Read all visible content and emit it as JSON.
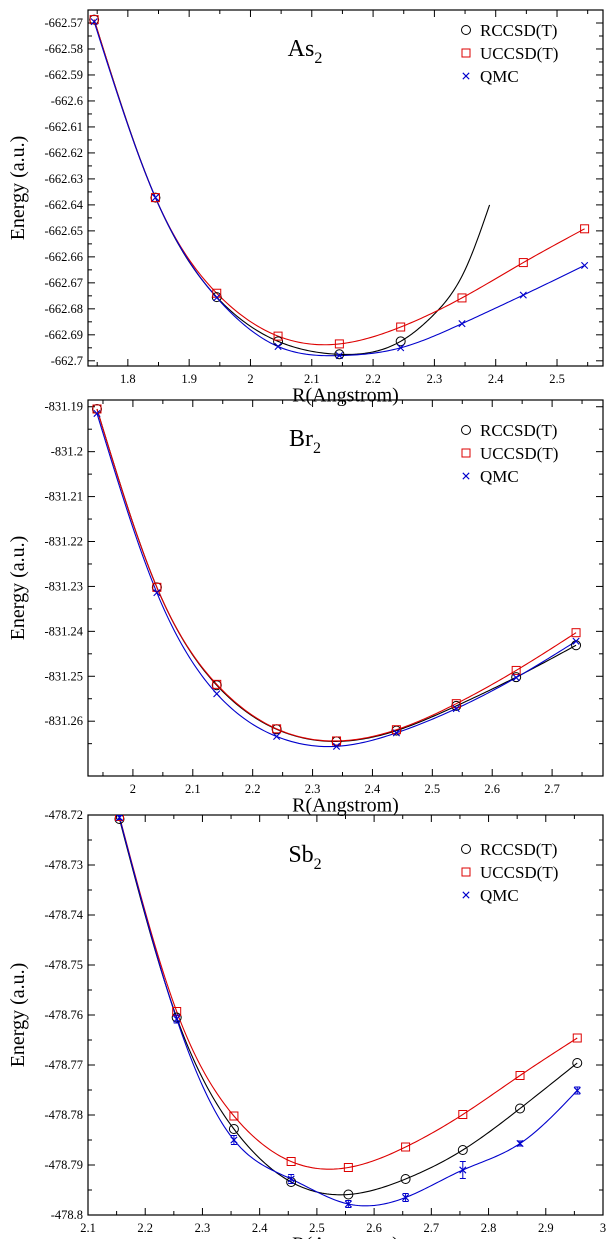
{
  "colors": {
    "rccsd": "#000000",
    "uccsd": "#dd0000",
    "qmc": "#0000cc",
    "axis": "#000000"
  },
  "chart_data": [
    {
      "type": "line",
      "title": "As",
      "title_sub": "2",
      "xlabel": "R(Angstrom)",
      "ylabel": "Energy (a.u.)",
      "xlim": [
        1.735,
        2.575
      ],
      "ylim": [
        -662.702,
        -662.565
      ],
      "xticks": [
        1.8,
        1.9,
        2,
        2.1,
        2.2,
        2.3,
        2.4,
        2.5
      ],
      "xtick_labels": [
        "1.8",
        "1.9",
        "2",
        "2.1",
        "2.2",
        "2.3",
        "2.4",
        "2.5"
      ],
      "yticks": [
        -662.57,
        -662.58,
        -662.59,
        -662.6,
        -662.61,
        -662.62,
        -662.63,
        -662.64,
        -662.65,
        -662.66,
        -662.67,
        -662.68,
        -662.69,
        -662.7
      ],
      "ytick_labels": [
        "-662.57",
        "-662.58",
        "-662.59",
        "-662.6",
        "-662.61",
        "-662.62",
        "-662.63",
        "-662.64",
        "-662.65",
        "-662.66",
        "-662.67",
        "-662.68",
        "-662.69",
        "-662.7"
      ],
      "grid": false,
      "legend": "top-right",
      "series": [
        {
          "name": "RCCSD(T)",
          "marker": "circle",
          "color": "#000000",
          "x": [
            1.745,
            1.845,
            1.945,
            2.045,
            2.145,
            2.245
          ],
          "y": [
            -662.5687,
            -662.6372,
            -662.6755,
            -662.6925,
            -662.6975,
            -662.6925
          ],
          "curve_x": [
            1.745,
            1.845,
            1.945,
            2.045,
            2.145,
            2.245,
            2.3,
            2.35,
            2.39
          ],
          "curve_y": [
            -662.5687,
            -662.6372,
            -662.6755,
            -662.6925,
            -662.6975,
            -662.6925,
            -662.682,
            -662.665,
            -662.64
          ]
        },
        {
          "name": "UCCSD(T)",
          "marker": "square",
          "color": "#dd0000",
          "x": [
            1.745,
            1.845,
            1.945,
            2.045,
            2.145,
            2.245,
            2.345,
            2.445,
            2.545
          ],
          "y": [
            -662.5687,
            -662.6372,
            -662.674,
            -662.6905,
            -662.6935,
            -662.687,
            -662.6758,
            -662.6622,
            -662.6492
          ]
        },
        {
          "name": "QMC",
          "marker": "x",
          "color": "#0000cc",
          "x": [
            1.745,
            1.845,
            1.945,
            2.045,
            2.145,
            2.245,
            2.345,
            2.445,
            2.545
          ],
          "y": [
            -662.5695,
            -662.6372,
            -662.6757,
            -662.6945,
            -662.698,
            -662.695,
            -662.6857,
            -662.6747,
            -662.6633
          ]
        }
      ]
    },
    {
      "type": "line",
      "title": "Br",
      "title_sub": "2",
      "xlabel": "R(Angstrom)",
      "ylabel": "Energy (a.u.)",
      "xlim": [
        1.925,
        2.785
      ],
      "ylim": [
        -831.2722,
        -831.1885
      ],
      "xticks": [
        2,
        2.1,
        2.2,
        2.3,
        2.4,
        2.5,
        2.6,
        2.7
      ],
      "xtick_labels": [
        "2",
        "2.1",
        "2.2",
        "2.3",
        "2.4",
        "2.5",
        "2.6",
        "2.7"
      ],
      "yticks": [
        -831.19,
        -831.2,
        -831.21,
        -831.22,
        -831.23,
        -831.24,
        -831.25,
        -831.26
      ],
      "ytick_labels": [
        "-831.19",
        "-831.2",
        "-831.21",
        "-831.22",
        "-831.23",
        "-831.24",
        "-831.25",
        "-831.26"
      ],
      "grid": false,
      "legend": "top-right",
      "series": [
        {
          "name": "RCCSD(T)",
          "marker": "circle",
          "color": "#000000",
          "x": [
            1.94,
            2.04,
            2.14,
            2.24,
            2.34,
            2.44,
            2.54,
            2.64,
            2.74
          ],
          "y": [
            -831.1905,
            -831.2302,
            -831.252,
            -831.2618,
            -831.2645,
            -831.2621,
            -831.2566,
            -831.2502,
            -831.2431
          ]
        },
        {
          "name": "UCCSD(T)",
          "marker": "square",
          "color": "#dd0000",
          "x": [
            1.94,
            2.04,
            2.14,
            2.24,
            2.34,
            2.44,
            2.54,
            2.64,
            2.74
          ],
          "y": [
            -831.1905,
            -831.2302,
            -831.2518,
            -831.2617,
            -831.2644,
            -831.2619,
            -831.2561,
            -831.2487,
            -831.2403
          ]
        },
        {
          "name": "QMC",
          "marker": "x",
          "color": "#0000cc",
          "x": [
            1.94,
            2.04,
            2.14,
            2.24,
            2.34,
            2.44,
            2.54,
            2.64,
            2.74
          ],
          "y": [
            -831.1915,
            -831.2314,
            -831.2539,
            -831.2634,
            -831.2656,
            -831.2626,
            -831.2572,
            -831.2503,
            -831.2422
          ]
        }
      ]
    },
    {
      "type": "line",
      "title": "Sb",
      "title_sub": "2",
      "xlabel": "R(Angstrom)",
      "ylabel": "Energy (a.u.)",
      "xlim": [
        2.1,
        3.0
      ],
      "ylim": [
        -478.8,
        -478.72
      ],
      "xticks": [
        2.1,
        2.2,
        2.3,
        2.4,
        2.5,
        2.6,
        2.7,
        2.8,
        2.9,
        3.0
      ],
      "xtick_labels": [
        "2.1",
        "2.2",
        "2.3",
        "2.4",
        "2.5",
        "2.6",
        "2.7",
        "2.8",
        "2.9",
        "3"
      ],
      "yticks": [
        -478.72,
        -478.73,
        -478.74,
        -478.75,
        -478.76,
        -478.77,
        -478.78,
        -478.79,
        -478.8
      ],
      "ytick_labels": [
        "-478.72",
        "-478.73",
        "-478.74",
        "-478.75",
        "-478.76",
        "-478.77",
        "-478.78",
        "-478.79",
        "-478.8"
      ],
      "grid": false,
      "legend": "top-right",
      "series": [
        {
          "name": "RCCSD(T)",
          "marker": "circle",
          "color": "#000000",
          "x": [
            2.155,
            2.255,
            2.355,
            2.455,
            2.555,
            2.655,
            2.755,
            2.855,
            2.955
          ],
          "y": [
            -478.7208,
            -478.7605,
            -478.7828,
            -478.7934,
            -478.7959,
            -478.7928,
            -478.787,
            -478.7787,
            -478.7696
          ]
        },
        {
          "name": "UCCSD(T)",
          "marker": "square",
          "color": "#dd0000",
          "x": [
            2.155,
            2.255,
            2.355,
            2.455,
            2.555,
            2.655,
            2.755,
            2.855,
            2.955
          ],
          "y": [
            -478.7203,
            -478.7593,
            -478.7802,
            -478.7893,
            -478.7905,
            -478.7864,
            -478.7799,
            -478.7721,
            -478.7646
          ]
        },
        {
          "name": "QMC",
          "marker": "x",
          "color": "#0000cc",
          "x": [
            2.155,
            2.255,
            2.355,
            2.455,
            2.555,
            2.655,
            2.755,
            2.855,
            2.955
          ],
          "y": [
            -478.7205,
            -478.7608,
            -478.785,
            -478.7928,
            -478.7978,
            -478.7965,
            -478.791,
            -478.7857,
            -478.7751
          ],
          "err": [
            0.0004,
            0.0008,
            0.0009,
            0.0009,
            0.0007,
            0.0008,
            0.0017,
            0.0005,
            0.0007
          ]
        }
      ]
    }
  ]
}
